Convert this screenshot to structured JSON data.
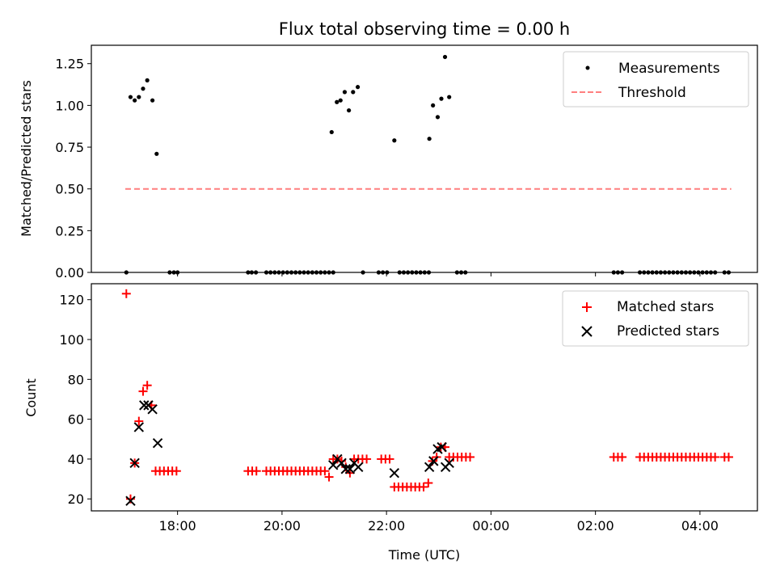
{
  "colors": {
    "measurement": "#000000",
    "threshold": "#ff7f7f",
    "matched": "#ff0000",
    "predicted": "#000000"
  },
  "chart_data": [
    {
      "type": "scatter",
      "title": "Flux total observing time = 0.00 h",
      "ylabel": "Matched/Predicted stars",
      "xlim": [
        16.35,
        29.1
      ],
      "ylim": [
        0,
        1.36
      ],
      "yticks": [
        0,
        0.25,
        0.5,
        0.75,
        1.0,
        1.25
      ],
      "ytick_labels": [
        "0.00",
        "0.25",
        "0.50",
        "0.75",
        "1.00",
        "1.25"
      ],
      "xticks": [
        18,
        20,
        22,
        24,
        26,
        28
      ],
      "legend": {
        "position": "top-right",
        "entries": [
          "Measurements",
          "Threshold"
        ]
      },
      "threshold": {
        "y": 0.5,
        "x": [
          17.0,
          28.6
        ]
      },
      "series": [
        {
          "name": "Measurements",
          "points": [
            [
              17.02,
              0
            ],
            [
              17.1,
              1.05
            ],
            [
              17.18,
              1.03
            ],
            [
              17.26,
              1.05
            ],
            [
              17.34,
              1.1
            ],
            [
              17.42,
              1.15
            ],
            [
              17.52,
              1.03
            ],
            [
              17.6,
              0.71
            ],
            [
              17.85,
              0
            ],
            [
              17.93,
              0
            ],
            [
              18.0,
              0
            ],
            [
              19.35,
              0
            ],
            [
              19.42,
              0
            ],
            [
              19.5,
              0
            ],
            [
              19.7,
              0
            ],
            [
              19.78,
              0
            ],
            [
              19.86,
              0
            ],
            [
              19.94,
              0
            ],
            [
              20.02,
              0
            ],
            [
              20.1,
              0
            ],
            [
              20.18,
              0
            ],
            [
              20.26,
              0
            ],
            [
              20.34,
              0
            ],
            [
              20.42,
              0
            ],
            [
              20.5,
              0
            ],
            [
              20.58,
              0
            ],
            [
              20.66,
              0
            ],
            [
              20.74,
              0
            ],
            [
              20.82,
              0
            ],
            [
              20.9,
              0
            ],
            [
              20.98,
              0
            ],
            [
              20.95,
              0.84
            ],
            [
              21.05,
              1.02
            ],
            [
              21.12,
              1.03
            ],
            [
              21.2,
              1.08
            ],
            [
              21.28,
              0.97
            ],
            [
              21.36,
              1.08
            ],
            [
              21.45,
              1.11
            ],
            [
              21.55,
              0
            ],
            [
              21.85,
              0
            ],
            [
              21.93,
              0
            ],
            [
              22.01,
              0
            ],
            [
              22.15,
              0.79
            ],
            [
              22.25,
              0
            ],
            [
              22.33,
              0
            ],
            [
              22.41,
              0
            ],
            [
              22.49,
              0
            ],
            [
              22.57,
              0
            ],
            [
              22.65,
              0
            ],
            [
              22.73,
              0
            ],
            [
              22.81,
              0
            ],
            [
              22.82,
              0.8
            ],
            [
              22.89,
              1.0
            ],
            [
              22.98,
              0.93
            ],
            [
              23.05,
              1.04
            ],
            [
              23.12,
              1.29
            ],
            [
              23.2,
              1.05
            ],
            [
              23.35,
              0
            ],
            [
              23.43,
              0
            ],
            [
              23.51,
              0
            ],
            [
              26.35,
              0
            ],
            [
              26.43,
              0
            ],
            [
              26.51,
              0
            ],
            [
              26.85,
              0
            ],
            [
              26.93,
              0
            ],
            [
              27.01,
              0
            ],
            [
              27.09,
              0
            ],
            [
              27.17,
              0
            ],
            [
              27.25,
              0
            ],
            [
              27.33,
              0
            ],
            [
              27.41,
              0
            ],
            [
              27.49,
              0
            ],
            [
              27.57,
              0
            ],
            [
              27.65,
              0
            ],
            [
              27.73,
              0
            ],
            [
              27.81,
              0
            ],
            [
              27.89,
              0
            ],
            [
              27.97,
              0
            ],
            [
              28.05,
              0
            ],
            [
              28.13,
              0
            ],
            [
              28.21,
              0
            ],
            [
              28.29,
              0
            ],
            [
              28.47,
              0
            ],
            [
              28.55,
              0
            ]
          ]
        }
      ]
    },
    {
      "type": "scatter",
      "xlabel": "Time (UTC)",
      "ylabel": "Count",
      "xlim": [
        16.35,
        29.1
      ],
      "ylim": [
        14,
        128
      ],
      "yticks": [
        20,
        40,
        60,
        80,
        100,
        120
      ],
      "ytick_labels": [
        "20",
        "40",
        "60",
        "80",
        "100",
        "120"
      ],
      "xticks": [
        18,
        20,
        22,
        24,
        26,
        28
      ],
      "xtick_labels": [
        "18:00",
        "20:00",
        "22:00",
        "00:00",
        "02:00",
        "04:00"
      ],
      "legend": {
        "position": "top-right",
        "entries": [
          "Matched stars",
          "Predicted stars"
        ]
      },
      "series": [
        {
          "name": "Matched stars",
          "marker": "+",
          "points": [
            [
              17.02,
              123
            ],
            [
              17.1,
              20
            ],
            [
              17.18,
              38
            ],
            [
              17.26,
              59
            ],
            [
              17.34,
              74
            ],
            [
              17.42,
              77
            ],
            [
              17.5,
              67
            ],
            [
              17.58,
              34
            ],
            [
              17.66,
              34
            ],
            [
              17.74,
              34
            ],
            [
              17.82,
              34
            ],
            [
              17.9,
              34
            ],
            [
              17.98,
              34
            ],
            [
              19.35,
              34
            ],
            [
              19.43,
              34
            ],
            [
              19.51,
              34
            ],
            [
              19.7,
              34
            ],
            [
              19.78,
              34
            ],
            [
              19.86,
              34
            ],
            [
              19.94,
              34
            ],
            [
              20.02,
              34
            ],
            [
              20.1,
              34
            ],
            [
              20.18,
              34
            ],
            [
              20.26,
              34
            ],
            [
              20.34,
              34
            ],
            [
              20.42,
              34
            ],
            [
              20.5,
              34
            ],
            [
              20.58,
              34
            ],
            [
              20.66,
              34
            ],
            [
              20.74,
              34
            ],
            [
              20.82,
              34
            ],
            [
              20.9,
              31
            ],
            [
              20.98,
              40
            ],
            [
              21.06,
              40
            ],
            [
              21.14,
              39
            ],
            [
              21.22,
              36
            ],
            [
              21.3,
              33
            ],
            [
              21.38,
              40
            ],
            [
              21.46,
              40
            ],
            [
              21.54,
              40
            ],
            [
              21.62,
              40
            ],
            [
              21.9,
              40
            ],
            [
              21.98,
              40
            ],
            [
              22.06,
              40
            ],
            [
              22.15,
              26
            ],
            [
              22.23,
              26
            ],
            [
              22.31,
              26
            ],
            [
              22.39,
              26
            ],
            [
              22.47,
              26
            ],
            [
              22.55,
              26
            ],
            [
              22.63,
              26
            ],
            [
              22.71,
              26
            ],
            [
              22.8,
              28
            ],
            [
              22.88,
              39
            ],
            [
              22.96,
              41
            ],
            [
              23.04,
              46
            ],
            [
              23.12,
              46
            ],
            [
              23.2,
              41
            ],
            [
              23.28,
              41
            ],
            [
              23.36,
              41
            ],
            [
              23.44,
              41
            ],
            [
              23.52,
              41
            ],
            [
              23.6,
              41
            ],
            [
              26.35,
              41
            ],
            [
              26.43,
              41
            ],
            [
              26.51,
              41
            ],
            [
              26.85,
              41
            ],
            [
              26.93,
              41
            ],
            [
              27.01,
              41
            ],
            [
              27.09,
              41
            ],
            [
              27.17,
              41
            ],
            [
              27.25,
              41
            ],
            [
              27.33,
              41
            ],
            [
              27.41,
              41
            ],
            [
              27.49,
              41
            ],
            [
              27.57,
              41
            ],
            [
              27.65,
              41
            ],
            [
              27.73,
              41
            ],
            [
              27.81,
              41
            ],
            [
              27.89,
              41
            ],
            [
              27.97,
              41
            ],
            [
              28.05,
              41
            ],
            [
              28.13,
              41
            ],
            [
              28.21,
              41
            ],
            [
              28.29,
              41
            ],
            [
              28.47,
              41
            ],
            [
              28.55,
              41
            ]
          ]
        },
        {
          "name": "Predicted stars",
          "marker": "x",
          "points": [
            [
              17.1,
              19
            ],
            [
              17.18,
              38
            ],
            [
              17.26,
              56
            ],
            [
              17.36,
              67
            ],
            [
              17.44,
              67
            ],
            [
              17.52,
              65
            ],
            [
              17.62,
              48
            ],
            [
              20.98,
              37
            ],
            [
              21.06,
              40
            ],
            [
              21.14,
              38
            ],
            [
              21.22,
              35
            ],
            [
              21.3,
              35
            ],
            [
              21.38,
              38
            ],
            [
              21.46,
              36
            ],
            [
              22.15,
              33
            ],
            [
              22.82,
              36
            ],
            [
              22.9,
              39
            ],
            [
              22.98,
              45
            ],
            [
              23.06,
              46
            ],
            [
              23.13,
              36
            ],
            [
              23.2,
              38
            ]
          ]
        }
      ]
    }
  ]
}
